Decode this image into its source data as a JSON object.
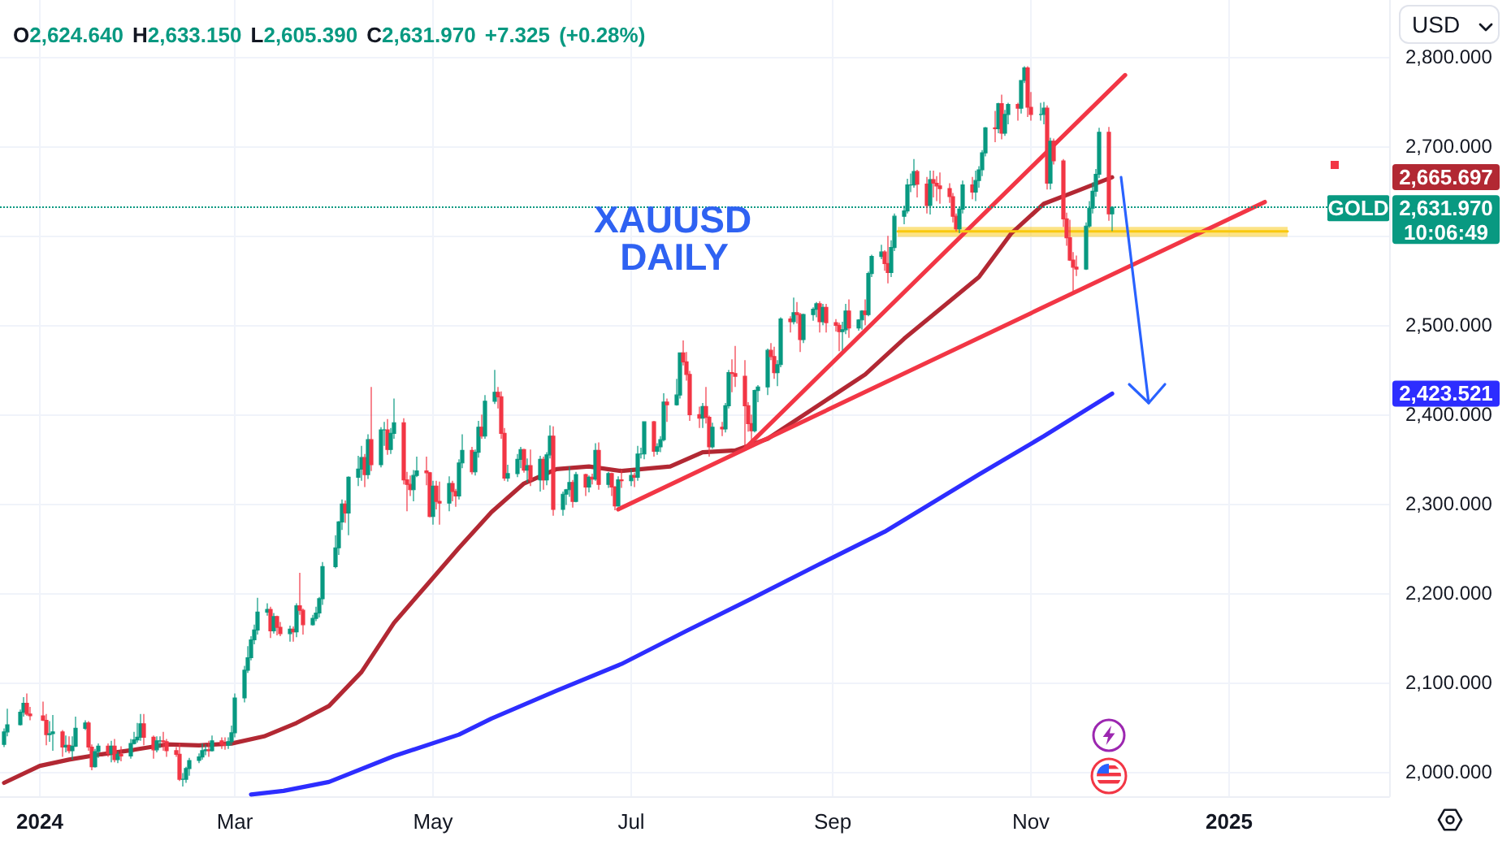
{
  "chart_data": {
    "type": "candlestick",
    "title": "O2,624.640 H2,633.150 L2,605.390 C2,631.970 +7.325 (+0.28%)",
    "ylabel": "USD",
    "annotations": [
      "XAUUSD",
      "DAILY",
      "GOLD",
      "10:06:49",
      "2,665.697",
      "2,423.521"
    ],
    "xlim": [
      "2023-12-19T18:00",
      "2025-02-19T06:00"
    ],
    "xticks": [
      {
        "value": "2024-01-01",
        "label": "2024"
      },
      {
        "value": "2024-03-01",
        "label": "Mar"
      },
      {
        "value": "2024-05-01",
        "label": "May"
      },
      {
        "value": "2024-07-01",
        "label": "Jul"
      },
      {
        "value": "2024-09-01",
        "label": "Sep"
      },
      {
        "value": "2024-11-01",
        "label": "Nov"
      },
      {
        "value": "2025-01-01",
        "label": "2025"
      }
    ],
    "ylim": [
      1973,
      2864
    ],
    "yticks": [
      {
        "value": 2000,
        "label": "2,000.000"
      },
      {
        "value": 2100,
        "label": "2,100.000"
      },
      {
        "value": 2200,
        "label": "2,200.000"
      },
      {
        "value": 2300,
        "label": "2,300.000"
      },
      {
        "value": 2400,
        "label": "2,400.000"
      },
      {
        "value": 2500,
        "label": "2,500.000"
      },
      {
        "value": 2600,
        "label": null
      },
      {
        "value": 2700,
        "label": "2,700.000"
      },
      {
        "value": 2800,
        "label": "2,800.000"
      }
    ],
    "grid": true,
    "x": [
      "2023-12-21",
      "2023-12-22",
      "2023-12-26",
      "2023-12-27",
      "2023-12-28",
      "2023-12-29",
      "2024-01-02",
      "2024-01-03",
      "2024-01-04",
      "2024-01-05",
      "2024-01-08",
      "2024-01-09",
      "2024-01-10",
      "2024-01-11",
      "2024-01-12",
      "2024-01-15",
      "2024-01-16",
      "2024-01-17",
      "2024-01-18",
      "2024-01-19",
      "2024-01-22",
      "2024-01-23",
      "2024-01-24",
      "2024-01-25",
      "2024-01-26",
      "2024-01-29",
      "2024-01-30",
      "2024-01-31",
      "2024-02-01",
      "2024-02-02",
      "2024-02-05",
      "2024-02-06",
      "2024-02-07",
      "2024-02-08",
      "2024-02-09",
      "2024-02-12",
      "2024-02-13",
      "2024-02-14",
      "2024-02-15",
      "2024-02-16",
      "2024-02-19",
      "2024-02-20",
      "2024-02-21",
      "2024-02-22",
      "2024-02-23",
      "2024-02-26",
      "2024-02-27",
      "2024-02-28",
      "2024-02-29",
      "2024-03-01",
      "2024-03-04",
      "2024-03-05",
      "2024-03-06",
      "2024-03-07",
      "2024-03-08",
      "2024-03-11",
      "2024-03-12",
      "2024-03-13",
      "2024-03-14",
      "2024-03-15",
      "2024-03-18",
      "2024-03-19",
      "2024-03-20",
      "2024-03-21",
      "2024-03-22",
      "2024-03-25",
      "2024-03-26",
      "2024-03-27",
      "2024-03-28",
      "2024-04-01",
      "2024-04-02",
      "2024-04-03",
      "2024-04-04",
      "2024-04-05",
      "2024-04-08",
      "2024-04-09",
      "2024-04-10",
      "2024-04-11",
      "2024-04-12",
      "2024-04-15",
      "2024-04-16",
      "2024-04-17",
      "2024-04-18",
      "2024-04-19",
      "2024-04-22",
      "2024-04-23",
      "2024-04-24",
      "2024-04-25",
      "2024-04-26",
      "2024-04-29",
      "2024-04-30",
      "2024-05-01",
      "2024-05-02",
      "2024-05-03",
      "2024-05-06",
      "2024-05-07",
      "2024-05-08",
      "2024-05-09",
      "2024-05-10",
      "2024-05-13",
      "2024-05-14",
      "2024-05-15",
      "2024-05-16",
      "2024-05-17",
      "2024-05-20",
      "2024-05-21",
      "2024-05-22",
      "2024-05-23",
      "2024-05-24",
      "2024-05-27",
      "2024-05-28",
      "2024-05-29",
      "2024-05-30",
      "2024-05-31",
      "2024-06-03",
      "2024-06-04",
      "2024-06-05",
      "2024-06-06",
      "2024-06-07",
      "2024-06-10",
      "2024-06-11",
      "2024-06-12",
      "2024-06-13",
      "2024-06-14",
      "2024-06-17",
      "2024-06-18",
      "2024-06-19",
      "2024-06-20",
      "2024-06-21",
      "2024-06-24",
      "2024-06-25",
      "2024-06-26",
      "2024-06-27",
      "2024-06-28",
      "2024-07-01",
      "2024-07-02",
      "2024-07-03",
      "2024-07-04",
      "2024-07-05",
      "2024-07-08",
      "2024-07-09",
      "2024-07-10",
      "2024-07-11",
      "2024-07-12",
      "2024-07-15",
      "2024-07-16",
      "2024-07-17",
      "2024-07-18",
      "2024-07-19",
      "2024-07-22",
      "2024-07-23",
      "2024-07-24",
      "2024-07-25",
      "2024-07-26",
      "2024-07-29",
      "2024-07-30",
      "2024-07-31",
      "2024-08-01",
      "2024-08-02",
      "2024-08-05",
      "2024-08-06",
      "2024-08-07",
      "2024-08-08",
      "2024-08-09",
      "2024-08-12",
      "2024-08-13",
      "2024-08-14",
      "2024-08-15",
      "2024-08-16",
      "2024-08-19",
      "2024-08-20",
      "2024-08-21",
      "2024-08-22",
      "2024-08-23",
      "2024-08-26",
      "2024-08-27",
      "2024-08-28",
      "2024-08-29",
      "2024-08-30",
      "2024-09-02",
      "2024-09-03",
      "2024-09-04",
      "2024-09-05",
      "2024-09-06",
      "2024-09-09",
      "2024-09-10",
      "2024-09-11",
      "2024-09-12",
      "2024-09-13",
      "2024-09-16",
      "2024-09-17",
      "2024-09-18",
      "2024-09-19",
      "2024-09-20",
      "2024-09-23",
      "2024-09-24",
      "2024-09-25",
      "2024-09-26",
      "2024-09-27",
      "2024-09-30",
      "2024-10-01",
      "2024-10-02",
      "2024-10-03",
      "2024-10-04",
      "2024-10-07",
      "2024-10-08",
      "2024-10-09",
      "2024-10-10",
      "2024-10-11",
      "2024-10-14",
      "2024-10-15",
      "2024-10-16",
      "2024-10-17",
      "2024-10-18",
      "2024-10-21",
      "2024-10-22",
      "2024-10-23",
      "2024-10-24",
      "2024-10-25",
      "2024-10-28",
      "2024-10-29",
      "2024-10-30",
      "2024-10-31",
      "2024-11-01",
      "2024-11-04",
      "2024-11-05",
      "2024-11-06",
      "2024-11-07",
      "2024-11-08",
      "2024-11-11",
      "2024-11-12",
      "2024-11-13",
      "2024-11-14",
      "2024-11-15",
      "2024-11-18",
      "2024-11-19",
      "2024-11-20",
      "2024-11-21",
      "2024-11-22",
      "2024-11-25",
      "2024-11-26"
    ],
    "ohlc": [
      [
        2031,
        2049,
        2028,
        2045
      ],
      [
        2045,
        2071,
        2040,
        2053
      ],
      [
        2053,
        2070,
        2052,
        2067
      ],
      [
        2067,
        2084,
        2062,
        2077
      ],
      [
        2077,
        2088,
        2063,
        2065
      ],
      [
        2065,
        2073,
        2058,
        2063
      ],
      [
        2063,
        2079,
        2057,
        2058
      ],
      [
        2058,
        2065,
        2030,
        2042
      ],
      [
        2042,
        2057,
        2034,
        2043
      ],
      [
        2043,
        2064,
        2024,
        2045
      ],
      [
        2045,
        2047,
        2017,
        2028
      ],
      [
        2028,
        2041,
        2022,
        2030
      ],
      [
        2030,
        2040,
        2021,
        2024
      ],
      [
        2024,
        2040,
        2014,
        2029
      ],
      [
        2029,
        2062,
        2028,
        2049
      ],
      [
        2049,
        2058,
        2047,
        2055
      ],
      [
        2055,
        2057,
        2024,
        2028
      ],
      [
        2028,
        2031,
        2002,
        2006
      ],
      [
        2006,
        2026,
        2005,
        2023
      ],
      [
        2023,
        2032,
        2016,
        2029
      ],
      [
        2029,
        2032,
        2017,
        2021
      ],
      [
        2021,
        2035,
        2011,
        2029
      ],
      [
        2029,
        2037,
        2011,
        2014
      ],
      [
        2014,
        2023,
        2010,
        2020
      ],
      [
        2020,
        2029,
        2012,
        2018
      ],
      [
        2018,
        2037,
        2015,
        2032
      ],
      [
        2032,
        2045,
        2031,
        2036
      ],
      [
        2036,
        2055,
        2033,
        2039
      ],
      [
        2039,
        2065,
        2035,
        2054
      ],
      [
        2054,
        2065,
        2030,
        2039
      ],
      [
        2039,
        2041,
        2015,
        2025
      ],
      [
        2025,
        2040,
        2022,
        2035
      ],
      [
        2035,
        2040,
        2027,
        2035
      ],
      [
        2035,
        2045,
        2024,
        2034
      ],
      [
        2034,
        2037,
        2017,
        2024
      ],
      [
        2024,
        2028,
        2017,
        2020
      ],
      [
        2020,
        2032,
        1990,
        1992
      ],
      [
        1992,
        1999,
        1984,
        1992
      ],
      [
        1992,
        2006,
        1988,
        2004
      ],
      [
        2004,
        2016,
        1996,
        2013
      ],
      [
        2013,
        2021,
        2010,
        2017
      ],
      [
        2017,
        2032,
        2014,
        2024
      ],
      [
        2024,
        2031,
        2019,
        2025
      ],
      [
        2025,
        2035,
        2017,
        2024
      ],
      [
        2024,
        2041,
        2023,
        2035
      ],
      [
        2035,
        2039,
        2026,
        2031
      ],
      [
        2031,
        2039,
        2025,
        2030
      ],
      [
        2030,
        2039,
        2026,
        2034
      ],
      [
        2034,
        2052,
        2030,
        2044
      ],
      [
        2044,
        2088,
        2039,
        2083
      ],
      [
        2083,
        2119,
        2078,
        2114
      ],
      [
        2114,
        2141,
        2111,
        2128
      ],
      [
        2128,
        2152,
        2125,
        2148
      ],
      [
        2148,
        2165,
        2143,
        2159
      ],
      [
        2159,
        2195,
        2154,
        2179
      ],
      [
        2179,
        2189,
        2175,
        2182
      ],
      [
        2182,
        2185,
        2150,
        2158
      ],
      [
        2158,
        2178,
        2155,
        2174
      ],
      [
        2174,
        2175,
        2153,
        2162
      ],
      [
        2162,
        2168,
        2152,
        2155
      ],
      [
        2155,
        2164,
        2146,
        2160
      ],
      [
        2160,
        2163,
        2146,
        2157
      ],
      [
        2157,
        2189,
        2151,
        2186
      ],
      [
        2186,
        2223,
        2176,
        2181
      ],
      [
        2181,
        2183,
        2154,
        2165
      ],
      [
        2165,
        2176,
        2164,
        2172
      ],
      [
        2172,
        2185,
        2169,
        2178
      ],
      [
        2178,
        2196,
        2173,
        2194
      ],
      [
        2194,
        2235,
        2187,
        2230
      ],
      [
        2230,
        2265,
        2228,
        2251
      ],
      [
        2251,
        2281,
        2243,
        2280
      ],
      [
        2280,
        2305,
        2271,
        2300
      ],
      [
        2300,
        2304,
        2279,
        2290
      ],
      [
        2290,
        2331,
        2265,
        2330
      ],
      [
        2330,
        2354,
        2320,
        2339
      ],
      [
        2339,
        2365,
        2326,
        2352
      ],
      [
        2352,
        2356,
        2319,
        2333
      ],
      [
        2333,
        2378,
        2328,
        2372
      ],
      [
        2372,
        2431,
        2337,
        2344
      ],
      [
        2344,
        2386,
        2341,
        2383
      ],
      [
        2383,
        2392,
        2365,
        2383
      ],
      [
        2383,
        2395,
        2355,
        2361
      ],
      [
        2361,
        2385,
        2356,
        2379
      ],
      [
        2379,
        2418,
        2373,
        2391
      ],
      [
        2391,
        2396,
        2322,
        2327
      ],
      [
        2327,
        2336,
        2292,
        2322
      ],
      [
        2322,
        2332,
        2309,
        2316
      ],
      [
        2316,
        2338,
        2303,
        2332
      ],
      [
        2332,
        2353,
        2330,
        2337
      ],
      [
        2337,
        2353,
        2321,
        2335
      ],
      [
        2335,
        2336,
        2285,
        2286
      ],
      [
        2286,
        2326,
        2277,
        2320
      ],
      [
        2320,
        2326,
        2294,
        2303
      ],
      [
        2303,
        2325,
        2277,
        2301
      ],
      [
        2301,
        2331,
        2292,
        2323
      ],
      [
        2323,
        2326,
        2303,
        2314
      ],
      [
        2314,
        2317,
        2297,
        2309
      ],
      [
        2309,
        2350,
        2305,
        2346
      ],
      [
        2346,
        2378,
        2340,
        2360
      ],
      [
        2360,
        2364,
        2333,
        2336
      ],
      [
        2336,
        2361,
        2332,
        2358
      ],
      [
        2358,
        2393,
        2352,
        2386
      ],
      [
        2386,
        2400,
        2373,
        2376
      ],
      [
        2376,
        2422,
        2373,
        2415
      ],
      [
        2415,
        2450,
        2412,
        2425
      ],
      [
        2425,
        2431,
        2407,
        2420
      ],
      [
        2420,
        2426,
        2373,
        2379
      ],
      [
        2379,
        2385,
        2326,
        2329
      ],
      [
        2329,
        2344,
        2325,
        2334
      ],
      [
        2334,
        2356,
        2330,
        2350
      ],
      [
        2350,
        2364,
        2340,
        2361
      ],
      [
        2361,
        2362,
        2335,
        2338
      ],
      [
        2338,
        2351,
        2324,
        2343
      ],
      [
        2343,
        2361,
        2320,
        2327
      ],
      [
        2327,
        2354,
        2314,
        2350
      ],
      [
        2350,
        2353,
        2316,
        2327
      ],
      [
        2327,
        2358,
        2321,
        2355
      ],
      [
        2355,
        2388,
        2351,
        2376
      ],
      [
        2376,
        2387,
        2287,
        2294
      ],
      [
        2294,
        2314,
        2287,
        2311
      ],
      [
        2311,
        2317,
        2299,
        2316
      ],
      [
        2316,
        2342,
        2308,
        2324
      ],
      [
        2324,
        2327,
        2296,
        2303
      ],
      [
        2303,
        2336,
        2302,
        2333
      ],
      [
        2333,
        2334,
        2309,
        2319
      ],
      [
        2319,
        2332,
        2313,
        2330
      ],
      [
        2330,
        2334,
        2322,
        2328
      ],
      [
        2328,
        2368,
        2326,
        2360
      ],
      [
        2360,
        2369,
        2316,
        2322
      ],
      [
        2322,
        2336,
        2318,
        2334
      ],
      [
        2334,
        2335,
        2309,
        2319
      ],
      [
        2319,
        2320,
        2293,
        2298
      ],
      [
        2298,
        2331,
        2297,
        2327
      ],
      [
        2327,
        2338,
        2318,
        2326
      ],
      [
        2326,
        2339,
        2320,
        2332
      ],
      [
        2332,
        2335,
        2319,
        2330
      ],
      [
        2330,
        2365,
        2326,
        2356
      ],
      [
        2356,
        2363,
        2351,
        2356
      ],
      [
        2356,
        2392,
        2350,
        2392
      ],
      [
        2392,
        2393,
        2353,
        2359
      ],
      [
        2359,
        2368,
        2355,
        2364
      ],
      [
        2364,
        2376,
        2358,
        2372
      ],
      [
        2372,
        2424,
        2370,
        2414
      ],
      [
        2414,
        2418,
        2392,
        2411
      ],
      [
        2411,
        2440,
        2410,
        2422
      ],
      [
        2422,
        2469,
        2418,
        2469
      ],
      [
        2469,
        2483,
        2455,
        2459
      ],
      [
        2459,
        2470,
        2438,
        2445
      ],
      [
        2445,
        2449,
        2393,
        2400
      ],
      [
        2400,
        2409,
        2385,
        2396
      ],
      [
        2396,
        2413,
        2385,
        2409
      ],
      [
        2409,
        2431,
        2390,
        2397
      ],
      [
        2397,
        2399,
        2353,
        2364
      ],
      [
        2364,
        2391,
        2362,
        2386
      ],
      [
        2386,
        2392,
        2376,
        2384
      ],
      [
        2384,
        2413,
        2380,
        2410
      ],
      [
        2410,
        2450,
        2407,
        2447
      ],
      [
        2447,
        2462,
        2425,
        2446
      ],
      [
        2446,
        2477,
        2431,
        2443
      ],
      [
        2443,
        2461,
        2364,
        2410
      ],
      [
        2410,
        2414,
        2381,
        2390
      ],
      [
        2390,
        2400,
        2368,
        2382
      ],
      [
        2382,
        2428,
        2380,
        2427
      ],
      [
        2427,
        2433,
        2414,
        2431
      ],
      [
        2431,
        2474,
        2422,
        2472
      ],
      [
        2472,
        2480,
        2461,
        2465
      ],
      [
        2465,
        2476,
        2440,
        2447
      ],
      [
        2447,
        2461,
        2432,
        2456
      ],
      [
        2456,
        2509,
        2453,
        2507
      ],
      [
        2507,
        2510,
        2492,
        2504
      ],
      [
        2504,
        2531,
        2501,
        2514
      ],
      [
        2514,
        2526,
        2502,
        2512
      ],
      [
        2512,
        2514,
        2470,
        2484
      ],
      [
        2484,
        2513,
        2480,
        2512
      ],
      [
        2512,
        2520,
        2505,
        2518
      ],
      [
        2518,
        2526,
        2509,
        2524
      ],
      [
        2524,
        2527,
        2492,
        2504
      ],
      [
        2504,
        2524,
        2500,
        2520
      ],
      [
        2520,
        2524,
        2492,
        2503
      ],
      [
        2503,
        2507,
        2493,
        2500
      ],
      [
        2500,
        2503,
        2471,
        2493
      ],
      [
        2493,
        2504,
        2472,
        2495
      ],
      [
        2495,
        2524,
        2490,
        2516
      ],
      [
        2516,
        2529,
        2486,
        2497
      ],
      [
        2497,
        2507,
        2494,
        2506
      ],
      [
        2506,
        2517,
        2495,
        2516
      ],
      [
        2516,
        2529,
        2500,
        2512
      ],
      [
        2512,
        2560,
        2510,
        2558
      ],
      [
        2558,
        2579,
        2554,
        2577
      ],
      [
        2577,
        2590,
        2574,
        2582
      ],
      [
        2582,
        2584,
        2561,
        2569
      ],
      [
        2569,
        2600,
        2547,
        2559
      ],
      [
        2559,
        2595,
        2554,
        2587
      ],
      [
        2587,
        2625,
        2583,
        2622
      ],
      [
        2622,
        2634,
        2613,
        2628
      ],
      [
        2628,
        2664,
        2625,
        2657
      ],
      [
        2657,
        2670,
        2649,
        2657
      ],
      [
        2657,
        2686,
        2654,
        2672
      ],
      [
        2672,
        2674,
        2643,
        2658
      ],
      [
        2658,
        2666,
        2625,
        2634
      ],
      [
        2634,
        2673,
        2624,
        2663
      ],
      [
        2663,
        2673,
        2643,
        2659
      ],
      [
        2659,
        2667,
        2639,
        2656
      ],
      [
        2656,
        2671,
        2636,
        2653
      ],
      [
        2653,
        2659,
        2637,
        2644
      ],
      [
        2644,
        2648,
        2615,
        2622
      ],
      [
        2622,
        2625,
        2605,
        2608
      ],
      [
        2608,
        2632,
        2603,
        2630
      ],
      [
        2630,
        2662,
        2625,
        2657
      ],
      [
        2657,
        2666,
        2641,
        2649
      ],
      [
        2649,
        2673,
        2639,
        2662
      ],
      [
        2662,
        2678,
        2654,
        2674
      ],
      [
        2674,
        2696,
        2667,
        2693
      ],
      [
        2693,
        2722,
        2689,
        2721
      ],
      [
        2721,
        2740,
        2705,
        2720
      ],
      [
        2720,
        2749,
        2715,
        2748
      ],
      [
        2748,
        2758,
        2708,
        2715
      ],
      [
        2715,
        2741,
        2712,
        2736
      ],
      [
        2736,
        2749,
        2725,
        2747
      ],
      [
        2747,
        2749,
        2729,
        2743
      ],
      [
        2743,
        2774,
        2737,
        2774
      ],
      [
        2774,
        2790,
        2771,
        2788
      ],
      [
        2788,
        2790,
        2733,
        2744
      ],
      [
        2744,
        2761,
        2729,
        2736
      ],
      [
        2736,
        2749,
        2729,
        2736
      ],
      [
        2736,
        2750,
        2725,
        2743
      ],
      [
        2743,
        2746,
        2652,
        2659
      ],
      [
        2659,
        2710,
        2652,
        2706
      ],
      [
        2706,
        2709,
        2680,
        2684
      ],
      [
        2684,
        2686,
        2610,
        2619
      ],
      [
        2619,
        2626,
        2589,
        2598
      ],
      [
        2598,
        2618,
        2572,
        2573
      ],
      [
        2573,
        2582,
        2537,
        2565
      ],
      [
        2565,
        2578,
        2555,
        2563
      ],
      [
        2563,
        2615,
        2562,
        2611
      ],
      [
        2611,
        2639,
        2609,
        2631
      ],
      [
        2631,
        2660,
        2625,
        2650
      ],
      [
        2650,
        2675,
        2644,
        2669
      ],
      [
        2669,
        2721,
        2665,
        2716
      ],
      [
        2716,
        2722,
        2617,
        2624.645
      ],
      [
        2624.64,
        2633.15,
        2605.39,
        2631.97
      ]
    ],
    "colors": [
      "#089981",
      "#089981",
      "#089981",
      "#089981",
      "#f23645",
      "#f23645",
      "#f23645",
      "#f23645",
      "#089981",
      "#089981",
      "#f23645",
      "#089981",
      "#f23645",
      "#089981",
      "#089981",
      "#089981",
      "#f23645",
      "#f23645",
      "#089981",
      "#089981",
      "#f23645",
      "#089981",
      "#f23645",
      "#089981",
      "#f23645",
      "#089981",
      "#089981",
      "#089981",
      "#089981",
      "#f23645",
      "#f23645",
      "#089981",
      "#089981",
      "#f23645",
      "#f23645",
      "#f23645",
      "#f23645",
      "#089981",
      "#089981",
      "#089981",
      "#089981",
      "#089981",
      "#089981",
      "#f23645",
      "#089981",
      "#f23645",
      "#f23645",
      "#089981",
      "#089981",
      "#089981",
      "#089981",
      "#089981",
      "#089981",
      "#089981",
      "#089981",
      "#089981",
      "#f23645",
      "#089981",
      "#f23645",
      "#f23645",
      "#089981",
      "#f23645",
      "#089981",
      "#f23645",
      "#f23645",
      "#089981",
      "#089981",
      "#089981",
      "#089981",
      "#089981",
      "#089981",
      "#089981",
      "#f23645",
      "#089981",
      "#089981",
      "#089981",
      "#f23645",
      "#089981",
      "#f23645",
      "#089981",
      "#089981",
      "#f23645",
      "#089981",
      "#089981",
      "#f23645",
      "#f23645",
      "#f23645",
      "#089981",
      "#089981",
      "#f23645",
      "#f23645",
      "#089981",
      "#f23645",
      "#f23645",
      "#089981",
      "#f23645",
      "#f23645",
      "#089981",
      "#089981",
      "#f23645",
      "#089981",
      "#089981",
      "#f23645",
      "#089981",
      "#089981",
      "#f23645",
      "#f23645",
      "#f23645",
      "#089981",
      "#089981",
      "#089981",
      "#f23645",
      "#089981",
      "#f23645",
      "#089981",
      "#f23645",
      "#089981",
      "#089981",
      "#f23645",
      "#089981",
      "#089981",
      "#089981",
      "#f23645",
      "#089981",
      "#f23645",
      "#089981",
      "#f23645",
      "#089981",
      "#f23645",
      "#089981",
      "#f23645",
      "#f23645",
      "#089981",
      "#f23645",
      "#089981",
      "#f23645",
      "#089981",
      "#089981",
      "#089981",
      "#f23645",
      "#089981",
      "#089981",
      "#089981",
      "#f23645",
      "#089981",
      "#089981",
      "#f23645",
      "#f23645",
      "#f23645",
      "#f23645",
      "#089981",
      "#f23645",
      "#f23645",
      "#089981",
      "#f23645",
      "#089981",
      "#089981",
      "#f23645",
      "#f23645",
      "#f23645",
      "#f23645",
      "#f23645",
      "#089981",
      "#089981",
      "#089981",
      "#f23645",
      "#f23645",
      "#089981",
      "#089981",
      "#f23645",
      "#089981",
      "#f23645",
      "#f23645",
      "#089981",
      "#089981",
      "#089981",
      "#f23645",
      "#089981",
      "#f23645",
      "#f23645",
      "#f23645",
      "#089981",
      "#089981",
      "#f23645",
      "#089981",
      "#089981",
      "#f23645",
      "#089981",
      "#089981",
      "#089981",
      "#f23645",
      "#f23645",
      "#089981",
      "#089981",
      "#089981",
      "#089981",
      "#089981",
      "#089981",
      "#f23645",
      "#f23645",
      "#089981",
      "#f23645",
      "#f23645",
      "#f23645",
      "#f23645",
      "#f23645",
      "#f23645",
      "#089981",
      "#089981",
      "#f23645",
      "#089981",
      "#089981",
      "#089981",
      "#089981",
      "#f23645",
      "#089981",
      "#f23645",
      "#089981",
      "#089981",
      "#f23645",
      "#089981",
      "#089981",
      "#f23645",
      "#f23645",
      "#089981",
      "#089981",
      "#f23645",
      "#089981",
      "#f23645",
      "#f23645",
      "#f23645",
      "#f23645",
      "#f23645",
      "#f23645",
      "#089981",
      "#089981",
      "#089981",
      "#089981",
      "#089981",
      "#f23645",
      "#089981"
    ],
    "series": [
      {
        "type": "line",
        "color": "#b22833",
        "x": [
          "2023-12-21",
          "2024-01-01",
          "2024-01-10",
          "2024-01-20",
          "2024-01-30",
          "2024-02-09",
          "2024-02-19",
          "2024-02-29",
          "2024-03-10",
          "2024-03-20",
          "2024-03-30",
          "2024-04-09",
          "2024-04-19",
          "2024-04-29",
          "2024-05-09",
          "2024-05-19",
          "2024-05-29",
          "2024-06-08",
          "2024-06-18",
          "2024-06-28",
          "2024-07-13",
          "2024-07-23",
          "2024-08-02",
          "2024-08-12",
          "2024-08-22",
          "2024-09-01",
          "2024-09-11",
          "2024-09-23",
          "2024-10-06",
          "2024-10-16",
          "2024-10-26",
          "2024-11-05",
          "2024-11-15",
          "2024-11-26"
        ],
        "values": [
          1988,
          2007,
          2014,
          2020,
          2025,
          2031,
          2030,
          2032,
          2040,
          2055,
          2074,
          2112,
          2167,
          2209,
          2251,
          2291,
          2323,
          2339,
          2342,
          2337,
          2342,
          2358,
          2360,
          2373,
          2397,
          2421,
          2445,
          2485,
          2524,
          2554,
          2603,
          2636,
          2650,
          2665.697
        ]
      },
      {
        "type": "line",
        "color": "#2d2dff",
        "x": [
          "2024-03-06",
          "2024-03-16",
          "2024-03-30",
          "2024-04-19",
          "2024-05-09",
          "2024-05-19",
          "2024-06-08",
          "2024-06-28",
          "2024-07-18",
          "2024-08-07",
          "2024-08-27",
          "2024-09-17",
          "2024-10-16",
          "2024-11-05",
          "2024-11-26"
        ],
        "values": [
          1975,
          1979,
          1989,
          2018,
          2042,
          2060,
          2091,
          2121,
          2158,
          2194,
          2231,
          2269,
          2333,
          2376,
          2423.521
        ]
      },
      {
        "type": "line",
        "color": "#f23645",
        "x": [
          "2024-06-27",
          "2025-01-12"
        ],
        "values": [
          2294,
          2638
        ]
      },
      {
        "type": "line",
        "color": "#f23645",
        "x": [
          "2024-08-05",
          "2024-11-30"
        ],
        "values": [
          2362,
          2780
        ]
      },
      {
        "type": "line",
        "color": "#f9c80e",
        "x": [
          "2024-09-21",
          "2025-01-19"
        ],
        "values": [
          2605,
          2605
        ],
        "lower": [
          2599,
          2599
        ],
        "upper": [
          2610,
          2610
        ]
      }
    ],
    "ref_lines": [
      {
        "axis": "y",
        "value": 2631.97,
        "label": "2,631.970",
        "color": "#089981",
        "line_style": "dotted"
      }
    ]
  }
}
